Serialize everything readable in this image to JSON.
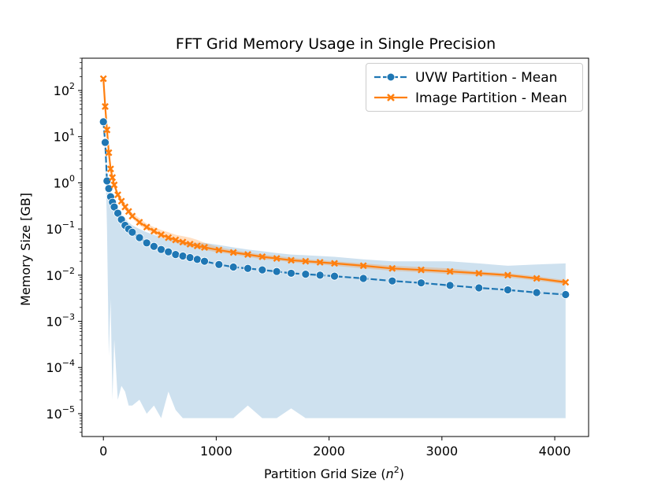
{
  "chart_data": {
    "type": "line",
    "title": "FFT Grid Memory Usage in Single Precision",
    "xlabel": "Partition Grid Size (n²)",
    "ylabel": "Memory Size [GB]",
    "yscale": "log",
    "xlim": [
      -190,
      4300
    ],
    "ylim": [
      3.2e-06,
      500
    ],
    "xticks": [
      0,
      1000,
      2000,
      3000,
      4000
    ],
    "xtick_labels": [
      "0",
      "1000",
      "2000",
      "3000",
      "4000"
    ],
    "yticks": [
      1e-05,
      0.0001,
      0.001,
      0.01,
      0.1,
      1,
      10,
      100
    ],
    "ytick_labels": [
      {
        "base": "10",
        "exp": "−5"
      },
      {
        "base": "10",
        "exp": "−4"
      },
      {
        "base": "10",
        "exp": "−3"
      },
      {
        "base": "10",
        "exp": "−2"
      },
      {
        "base": "10",
        "exp": "−1"
      },
      {
        "base": "10",
        "exp": "0"
      },
      {
        "base": "10",
        "exp": "1"
      },
      {
        "base": "10",
        "exp": "2"
      }
    ],
    "legend_position": "top-right",
    "series": [
      {
        "name": "UVW Partition - Mean",
        "color": "#1f77b4",
        "marker": "circle",
        "x": [
          0,
          16,
          32,
          48,
          64,
          80,
          96,
          128,
          160,
          192,
          224,
          256,
          320,
          384,
          448,
          512,
          576,
          640,
          704,
          768,
          832,
          896,
          1024,
          1152,
          1280,
          1408,
          1536,
          1664,
          1792,
          1920,
          2048,
          2304,
          2560,
          2816,
          3072,
          3328,
          3584,
          3840,
          4096
        ],
        "y": [
          21,
          7.5,
          1.1,
          0.75,
          0.5,
          0.38,
          0.3,
          0.22,
          0.16,
          0.12,
          0.1,
          0.085,
          0.065,
          0.05,
          0.042,
          0.036,
          0.032,
          0.028,
          0.026,
          0.024,
          0.022,
          0.02,
          0.017,
          0.015,
          0.014,
          0.013,
          0.012,
          0.011,
          0.0105,
          0.01,
          0.0095,
          0.0085,
          0.0075,
          0.0068,
          0.006,
          0.0053,
          0.0048,
          0.0042,
          0.0038
        ],
        "band_upper": [
          22,
          8,
          1.3,
          0.9,
          0.6,
          0.45,
          0.35,
          0.27,
          0.2,
          0.17,
          0.14,
          0.12,
          0.1,
          0.085,
          0.075,
          0.065,
          0.06,
          0.056,
          0.053,
          0.05,
          0.05,
          0.05,
          0.045,
          0.04,
          0.036,
          0.033,
          0.03,
          0.028,
          0.027,
          0.026,
          0.025,
          0.022,
          0.02,
          0.02,
          0.02,
          0.018,
          0.016,
          0.017,
          0.018
        ],
        "band_lower": [
          20,
          6,
          0.1,
          0.00018,
          0.003,
          2e-05,
          0.0004,
          2e-05,
          4e-05,
          3e-05,
          1.5e-05,
          1.5e-05,
          2e-05,
          1e-05,
          1.5e-05,
          8e-06,
          3e-05,
          1.2e-05,
          8e-06,
          8e-06,
          8e-06,
          8e-06,
          8e-06,
          8e-06,
          1.5e-05,
          8e-06,
          8e-06,
          1.3e-05,
          8e-06,
          8e-06,
          8e-06,
          8e-06,
          8e-06,
          8e-06,
          8e-06,
          8e-06,
          8e-06,
          8e-06,
          8e-06
        ]
      },
      {
        "name": "Image Partition - Mean",
        "color": "#ff7f0e",
        "marker": "x",
        "x": [
          0,
          16,
          32,
          48,
          64,
          80,
          96,
          128,
          160,
          192,
          224,
          256,
          320,
          384,
          448,
          512,
          576,
          640,
          704,
          768,
          832,
          896,
          1024,
          1152,
          1280,
          1408,
          1536,
          1664,
          1792,
          1920,
          2048,
          2304,
          2560,
          2816,
          3072,
          3328,
          3584,
          3840,
          4096
        ],
        "y": [
          180,
          45,
          14,
          4.5,
          2,
          1.3,
          0.9,
          0.55,
          0.4,
          0.3,
          0.24,
          0.19,
          0.14,
          0.11,
          0.09,
          0.075,
          0.065,
          0.058,
          0.052,
          0.047,
          0.043,
          0.04,
          0.035,
          0.031,
          0.028,
          0.025,
          0.023,
          0.021,
          0.02,
          0.019,
          0.018,
          0.016,
          0.014,
          0.013,
          0.012,
          0.011,
          0.01,
          0.0085,
          0.007
        ],
        "band_upper": [
          190,
          48,
          16,
          5,
          2.3,
          1.5,
          1.05,
          0.65,
          0.47,
          0.35,
          0.28,
          0.22,
          0.17,
          0.13,
          0.11,
          0.095,
          0.085,
          0.075,
          0.07,
          0.065,
          0.058,
          0.05,
          0.04,
          0.035,
          0.031,
          0.028,
          0.026,
          0.024,
          0.022,
          0.021,
          0.02,
          0.018,
          0.016,
          0.015,
          0.014,
          0.012,
          0.011,
          0.0095,
          0.0078
        ],
        "band_lower": [
          170,
          42,
          12,
          4,
          1.8,
          1.15,
          0.8,
          0.5,
          0.35,
          0.26,
          0.21,
          0.17,
          0.12,
          0.095,
          0.078,
          0.065,
          0.057,
          0.05,
          0.045,
          0.041,
          0.038,
          0.035,
          0.031,
          0.028,
          0.025,
          0.022,
          0.021,
          0.019,
          0.018,
          0.017,
          0.016,
          0.014,
          0.0125,
          0.0115,
          0.0106,
          0.0098,
          0.0089,
          0.0076,
          0.0063
        ]
      }
    ]
  }
}
